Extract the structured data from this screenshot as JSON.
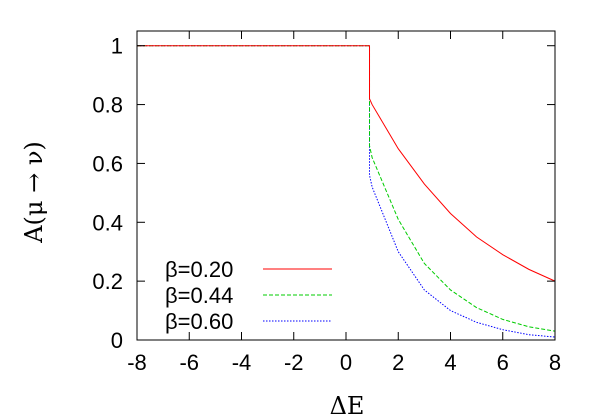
{
  "chart_data": {
    "type": "line",
    "title": "",
    "xlabel": "ΔE",
    "ylabel": "A(μ → ν)",
    "xlim": [
      -8,
      8
    ],
    "ylim": [
      0,
      1.05
    ],
    "xticks": [
      -8,
      -6,
      -4,
      -2,
      0,
      2,
      4,
      6,
      8
    ],
    "yticks": [
      0,
      0.2,
      0.4,
      0.6,
      0.8,
      1
    ],
    "xtick_labels": [
      "-8",
      "-6",
      "-4",
      "-2",
      "0",
      "2",
      "4",
      "6",
      "8"
    ],
    "ytick_labels": [
      "0",
      "0.2",
      "0.4",
      "0.6",
      "0.8",
      "1"
    ],
    "grid": false,
    "legend_position": "bottom-left",
    "series": [
      {
        "name": "β=0.20",
        "color": "#ff0000",
        "dash": "solid",
        "x": [
          -8,
          -6,
          -4,
          -2,
          0,
          0.9,
          0.9,
          1,
          2,
          3,
          4,
          5,
          6,
          7,
          8
        ],
        "y": [
          1,
          1,
          1,
          1,
          1,
          1,
          0.82,
          0.8,
          0.65,
          0.53,
          0.43,
          0.35,
          0.29,
          0.24,
          0.2
        ]
      },
      {
        "name": "β=0.44",
        "color": "#00cc00",
        "dash": "dashed",
        "x": [
          -8,
          -6,
          -4,
          -2,
          0,
          0.9,
          0.9,
          1,
          2,
          3,
          4,
          5,
          6,
          7,
          8
        ],
        "y": [
          1,
          1,
          1,
          1,
          1,
          1,
          0.66,
          0.62,
          0.41,
          0.26,
          0.17,
          0.11,
          0.07,
          0.045,
          0.03
        ]
      },
      {
        "name": "β=0.60",
        "color": "#0000ff",
        "dash": "dotted",
        "x": [
          -8,
          -6,
          -4,
          -2,
          0,
          0.9,
          0.9,
          1,
          2,
          3,
          4,
          5,
          6,
          7,
          8
        ],
        "y": [
          1,
          1,
          1,
          1,
          1,
          1,
          0.56,
          0.52,
          0.3,
          0.17,
          0.1,
          0.06,
          0.035,
          0.018,
          0.01
        ]
      }
    ]
  }
}
